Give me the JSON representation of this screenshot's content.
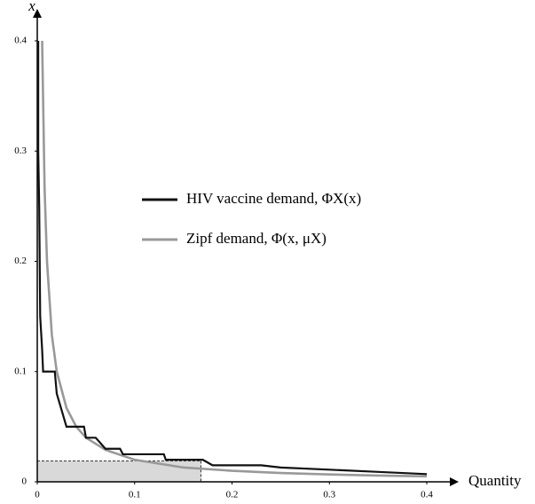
{
  "chart_data": {
    "type": "line",
    "y_axis_label": "x",
    "x_axis_label": "Quantity",
    "xlim": [
      0,
      0.4
    ],
    "ylim": [
      0,
      0.4
    ],
    "xticks": [
      0,
      0.1,
      0.2,
      0.3,
      0.4
    ],
    "yticks": [
      0,
      0.1,
      0.2,
      0.3,
      0.4
    ],
    "series": [
      {
        "name": "HIV vaccine demand, ΦX(x)",
        "color": "#111111",
        "x": [
          0.001,
          0.001,
          0.002,
          0.003,
          0.005,
          0.006,
          0.018,
          0.02,
          0.025,
          0.03,
          0.048,
          0.05,
          0.06,
          0.065,
          0.07,
          0.085,
          0.088,
          0.13,
          0.132,
          0.17,
          0.18,
          0.23,
          0.25,
          0.3,
          0.35,
          0.4
        ],
        "values": [
          0.4,
          0.3,
          0.25,
          0.15,
          0.12,
          0.1,
          0.1,
          0.08,
          0.065,
          0.05,
          0.05,
          0.04,
          0.04,
          0.035,
          0.03,
          0.03,
          0.025,
          0.025,
          0.02,
          0.02,
          0.015,
          0.015,
          0.013,
          0.011,
          0.009,
          0.007
        ]
      },
      {
        "name": "Zipf demand, Φ(x, μX)",
        "color": "#999999",
        "x": [
          0.005,
          0.0075,
          0.01,
          0.015,
          0.02,
          0.03,
          0.04,
          0.05,
          0.07,
          0.1,
          0.15,
          0.2,
          0.25,
          0.3,
          0.35,
          0.4
        ],
        "values": [
          0.4,
          0.267,
          0.2,
          0.133,
          0.1,
          0.067,
          0.05,
          0.04,
          0.029,
          0.02,
          0.013,
          0.01,
          0.008,
          0.0067,
          0.0057,
          0.005
        ]
      }
    ],
    "shaded_region": {
      "x": [
        0,
        0.168
      ],
      "y": [
        0,
        0.019
      ],
      "color": "#d9d9d9"
    }
  }
}
